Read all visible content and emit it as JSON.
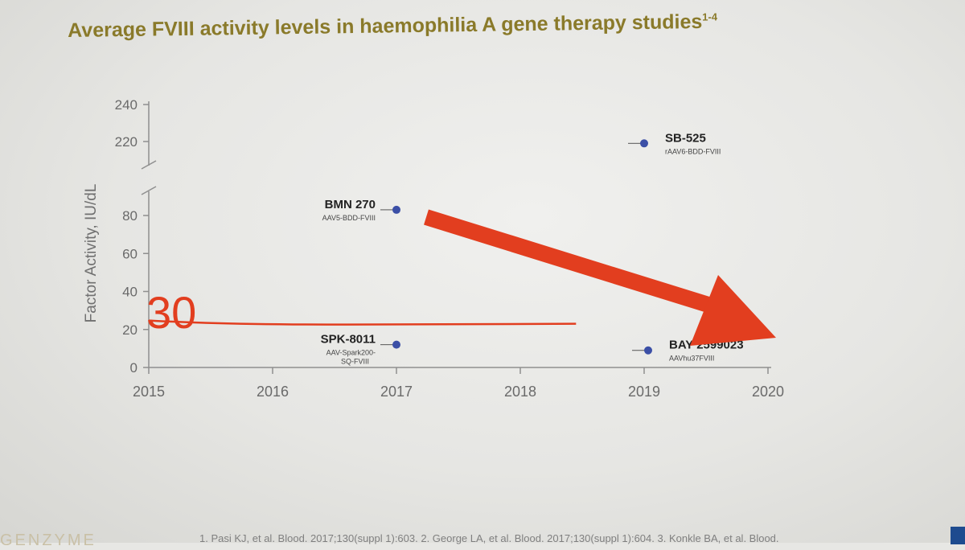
{
  "title_main": "Average FVIII activity levels in haemophilia A gene therapy studies",
  "title_refs": "1-4",
  "colors": {
    "title": "#8a7a2a",
    "axis": "#8f8f8f",
    "tick_text": "#6a6a6a",
    "point": "#3b4fa6",
    "annotation": "#e23e1f"
  },
  "chart_data": {
    "type": "scatter",
    "title": "Average FVIII activity levels in haemophilia A gene therapy studies",
    "xlabel": "",
    "ylabel": "Factor Activity, IU/dL",
    "xlim": [
      2015,
      2020
    ],
    "x_ticks": [
      "2015",
      "2016",
      "2017",
      "2018",
      "2019",
      "2020"
    ],
    "y_ticks_lower": [
      "0",
      "20",
      "40",
      "60",
      "80"
    ],
    "y_ticks_upper": [
      "220",
      "240"
    ],
    "ylim_lower": [
      0,
      90
    ],
    "ylim_upper": [
      210,
      240
    ],
    "axis_break": true,
    "grid": false,
    "points": [
      {
        "name": "BMN 270",
        "vector": "AAV5-BDD-FVIII",
        "x": 2017,
        "y": 83
      },
      {
        "name": "SPK-8011",
        "vector": "AAV-Spark200-\nSQ-FVIII",
        "x": 2017,
        "y": 12
      },
      {
        "name": "SB-525",
        "vector": "rAAV6-BDD-FVIII",
        "x": 2019,
        "y": 219
      },
      {
        "name": "BAY 2599023",
        "vector": "AAVhu37FVIII",
        "x": 2019,
        "y": 9
      }
    ],
    "annotations": {
      "handwritten_value": "30",
      "line_level": 23,
      "line_from": 2015,
      "line_to": 2018.45,
      "arrow": "red arrow pointing down-right toward 2020"
    }
  },
  "footer": {
    "logo": "GENZYME",
    "references": "1. Pasi KJ, et al. Blood. 2017;130(suppl 1):603. 2. George LA, et al. Blood. 2017;130(suppl 1):604. 3. Konkle BA, et al. Blood."
  }
}
